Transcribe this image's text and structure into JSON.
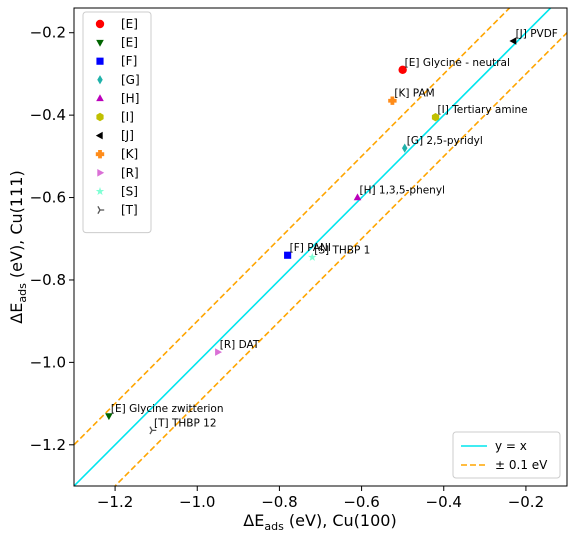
{
  "chart_data": {
    "type": "scatter",
    "title": "",
    "xlabel": {
      "prefix": "ΔE",
      "sub": "ads",
      "suffix": " (eV), Cu(100)"
    },
    "ylabel": {
      "prefix": "ΔE",
      "sub": "ads",
      "suffix": "  (eV), Cu(111)"
    },
    "xlim": [
      -1.3,
      -0.1
    ],
    "ylim": [
      -1.3,
      -0.14
    ],
    "xticks": [
      {
        "value": -1.2,
        "label": "−1.2"
      },
      {
        "value": -1.0,
        "label": "−1.0"
      },
      {
        "value": -0.8,
        "label": "−0.8"
      },
      {
        "value": -0.6,
        "label": "−0.6"
      },
      {
        "value": -0.4,
        "label": "−0.4"
      },
      {
        "value": -0.2,
        "label": "−0.2"
      }
    ],
    "yticks": [
      {
        "value": -1.2,
        "label": "−1.2"
      },
      {
        "value": -1.0,
        "label": "−1.0"
      },
      {
        "value": -0.8,
        "label": "−0.8"
      },
      {
        "value": -0.6,
        "label": "−0.6"
      },
      {
        "value": -0.4,
        "label": "−0.4"
      },
      {
        "value": -0.2,
        "label": "−0.2"
      }
    ],
    "grid": false,
    "series": [
      {
        "name": "[E]",
        "marker": "circle",
        "color": "#ff0000",
        "points": [
          {
            "x": -0.5,
            "y": -0.29,
            "label": "[E] Glycine - neutral"
          }
        ]
      },
      {
        "name": "[E]",
        "marker": "triangle-down",
        "color": "#006400",
        "points": [
          {
            "x": -1.215,
            "y": -1.13,
            "label": "[E] Glycine zwitterion"
          }
        ]
      },
      {
        "name": "[F]",
        "marker": "square",
        "color": "#0000ff",
        "points": [
          {
            "x": -0.78,
            "y": -0.74,
            "label": "[F] PANI"
          }
        ]
      },
      {
        "name": "[G]",
        "marker": "diamond",
        "color": "#20b2aa",
        "points": [
          {
            "x": -0.495,
            "y": -0.48,
            "label": "[G] 2,5-pyridyl"
          }
        ]
      },
      {
        "name": "[H]",
        "marker": "triangle-up",
        "color": "#bb00bb",
        "points": [
          {
            "x": -0.61,
            "y": -0.6,
            "label": "[H] 1,3,5-phenyl"
          }
        ]
      },
      {
        "name": "[I]",
        "marker": "hexagon",
        "color": "#c0c000",
        "points": [
          {
            "x": -0.42,
            "y": -0.405,
            "label": "[I] Tertiary amine"
          }
        ]
      },
      {
        "name": "[J]",
        "marker": "triangle-left",
        "color": "#000000",
        "points": [
          {
            "x": -0.23,
            "y": -0.22,
            "label": "[J] PVDF"
          }
        ]
      },
      {
        "name": "[K]",
        "marker": "plus",
        "color": "#ff8c1a",
        "points": [
          {
            "x": -0.525,
            "y": -0.365,
            "label": "[K] PAM"
          }
        ]
      },
      {
        "name": "[R]",
        "marker": "triangle-right",
        "color": "#da70d6",
        "points": [
          {
            "x": -0.95,
            "y": -0.975,
            "label": "[R] DAT"
          }
        ]
      },
      {
        "name": "[S]",
        "marker": "star",
        "color": "#7fffd4",
        "points": [
          {
            "x": -0.72,
            "y": -0.745,
            "label": "[S] THBP 1"
          }
        ]
      },
      {
        "name": "[T]",
        "marker": "tri",
        "color": "#555555",
        "points": [
          {
            "x": -1.11,
            "y": -1.165,
            "label": "[T] THBP 12"
          }
        ]
      }
    ],
    "lines": [
      {
        "name": "y = x",
        "color": "#00e5ee",
        "style": "solid",
        "offset": 0
      },
      {
        "name": "± 0.1 eV",
        "color": "#ffa500",
        "style": "dashed",
        "offset": 0.1
      },
      {
        "name": "",
        "color": "#ffa500",
        "style": "dashed",
        "offset": -0.1
      }
    ],
    "legend": {
      "marker_legend_position": "top-left",
      "line_legend_position": "bottom-right",
      "line_entries": [
        {
          "label": "y = x",
          "color": "#00e5ee",
          "style": "solid"
        },
        {
          "label": "± 0.1 eV",
          "color": "#ffa500",
          "style": "dashed"
        }
      ]
    }
  }
}
